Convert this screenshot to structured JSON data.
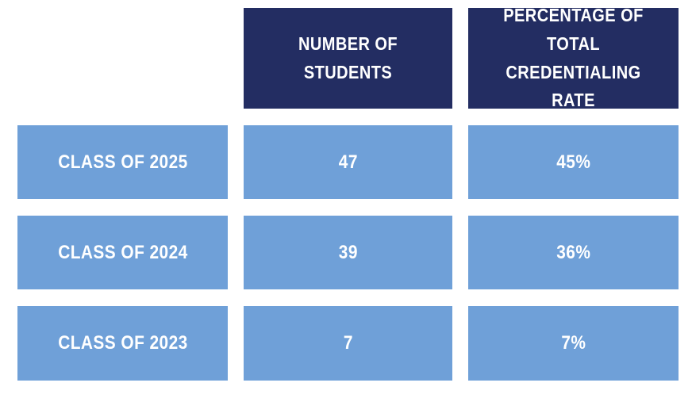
{
  "table": {
    "header": {
      "students_label": "NUMBER OF STUDENTS",
      "rate_label": "PERCENTAGE OF TOTAL CREDENTIALING RATE"
    },
    "rows": [
      {
        "label": "CLASS OF 2025",
        "students": "47",
        "rate": "45%"
      },
      {
        "label": "CLASS OF 2024",
        "students": "39",
        "rate": "36%"
      },
      {
        "label": "CLASS OF 2023",
        "students": "7",
        "rate": "7%"
      }
    ]
  },
  "colors": {
    "header_bg": "#232d62",
    "cell_bg": "#6fa0d8",
    "text": "#ffffff",
    "page_bg": "#ffffff"
  },
  "chart_data": {
    "type": "table",
    "columns": [
      "",
      "NUMBER OF STUDENTS",
      "PERCENTAGE OF TOTAL CREDENTIALING RATE"
    ],
    "rows": [
      [
        "CLASS OF 2025",
        47,
        "45%"
      ],
      [
        "CLASS OF 2024",
        39,
        "36%"
      ],
      [
        "CLASS OF 2023",
        7,
        "7%"
      ]
    ]
  }
}
